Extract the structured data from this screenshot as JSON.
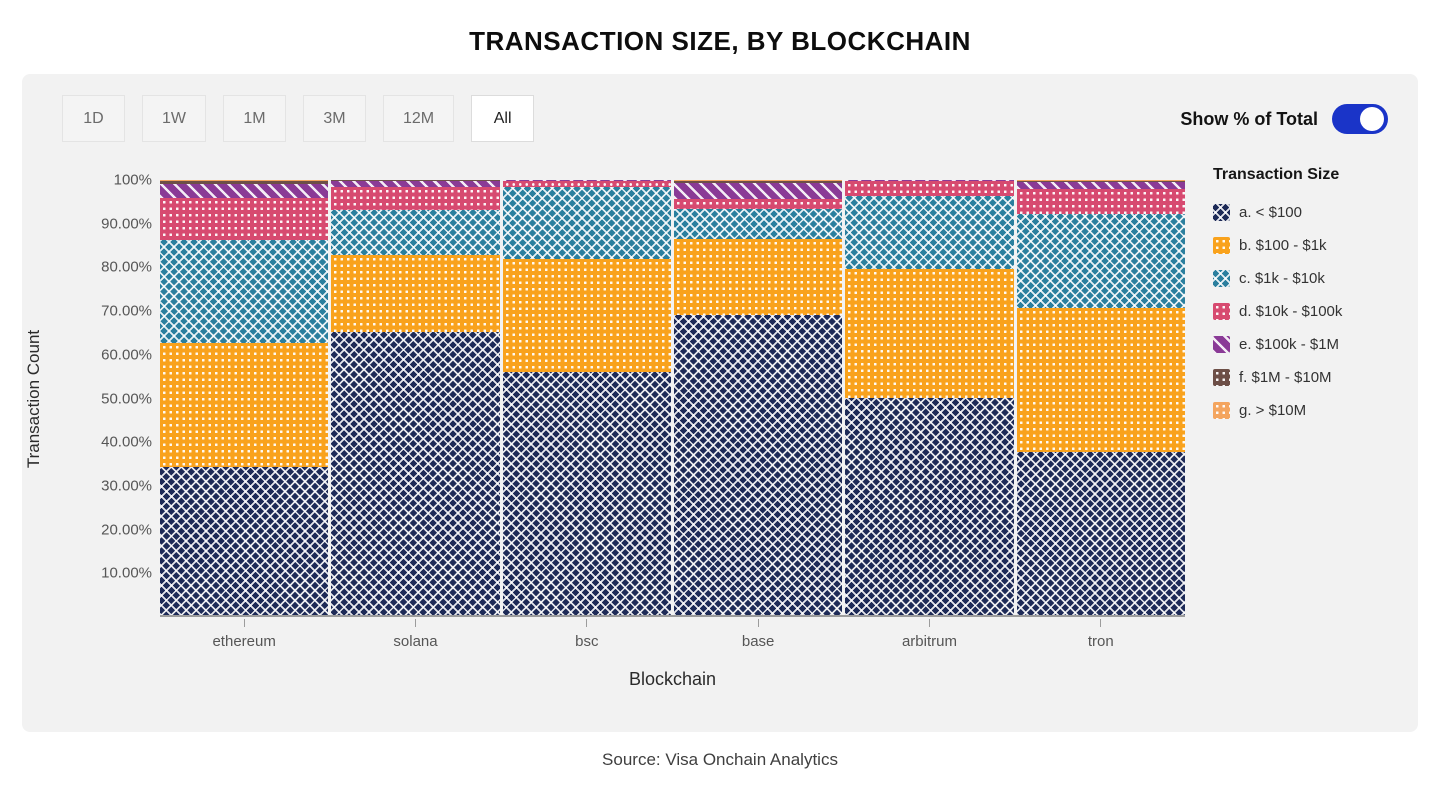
{
  "title": "TRANSACTION SIZE, BY BLOCKCHAIN",
  "toolbar": {
    "ranges": [
      "1D",
      "1W",
      "1M",
      "3M",
      "12M",
      "All"
    ],
    "active_range": "All",
    "toggle_label": "Show % of Total",
    "toggle_on": true,
    "toggle_color": "#1a34c8"
  },
  "chart_data": {
    "type": "bar",
    "stacked": true,
    "normalized_percent": true,
    "xlabel": "Blockchain",
    "ylabel": "Transaction Count",
    "ylim": [
      0,
      100
    ],
    "y_ticks": [
      "100%",
      "90.00%",
      "80.00%",
      "70.00%",
      "60.00%",
      "50.00%",
      "40.00%",
      "30.00%",
      "20.00%",
      "10.00%"
    ],
    "categories": [
      "ethereum",
      "solana",
      "bsc",
      "base",
      "arbitrum",
      "tron"
    ],
    "legend_title": "Transaction Size",
    "legend_position": "right",
    "grid": false,
    "series": [
      {
        "name": "a. < $100",
        "color": "#1d2a57",
        "pattern": "crosshatch",
        "values": [
          34.0,
          65.0,
          55.8,
          68.9,
          49.9,
          37.5
        ]
      },
      {
        "name": "b. $100 - $1k",
        "color": "#f9a21c",
        "pattern": "dots",
        "values": [
          28.5,
          17.8,
          26.1,
          17.6,
          29.7,
          33.0
        ]
      },
      {
        "name": "c. $1k - $10k",
        "color": "#2a7f9e",
        "pattern": "crosshatch",
        "values": [
          23.7,
          10.3,
          16.5,
          6.9,
          16.7,
          21.7
        ]
      },
      {
        "name": "d. $10k - $100k",
        "color": "#d74a70",
        "pattern": "dots",
        "values": [
          9.6,
          5.3,
          1.4,
          2.3,
          3.4,
          5.7
        ]
      },
      {
        "name": "e. $100k - $1M",
        "color": "#8a3a96",
        "pattern": "stripes",
        "values": [
          3.4,
          1.3,
          0.1,
          3.6,
          0.2,
          1.7
        ]
      },
      {
        "name": "f. $1M - $10M",
        "color": "#6d4f47",
        "pattern": "dots",
        "values": [
          0.6,
          0.2,
          0.05,
          0.5,
          0.05,
          0.25
        ]
      },
      {
        "name": "g. > $10M",
        "color": "#f4a55f",
        "pattern": "dots",
        "values": [
          0.2,
          0.1,
          0.05,
          0.2,
          0.05,
          0.15
        ]
      }
    ]
  },
  "footer": {
    "source": "Source: Visa Onchain Analytics"
  }
}
